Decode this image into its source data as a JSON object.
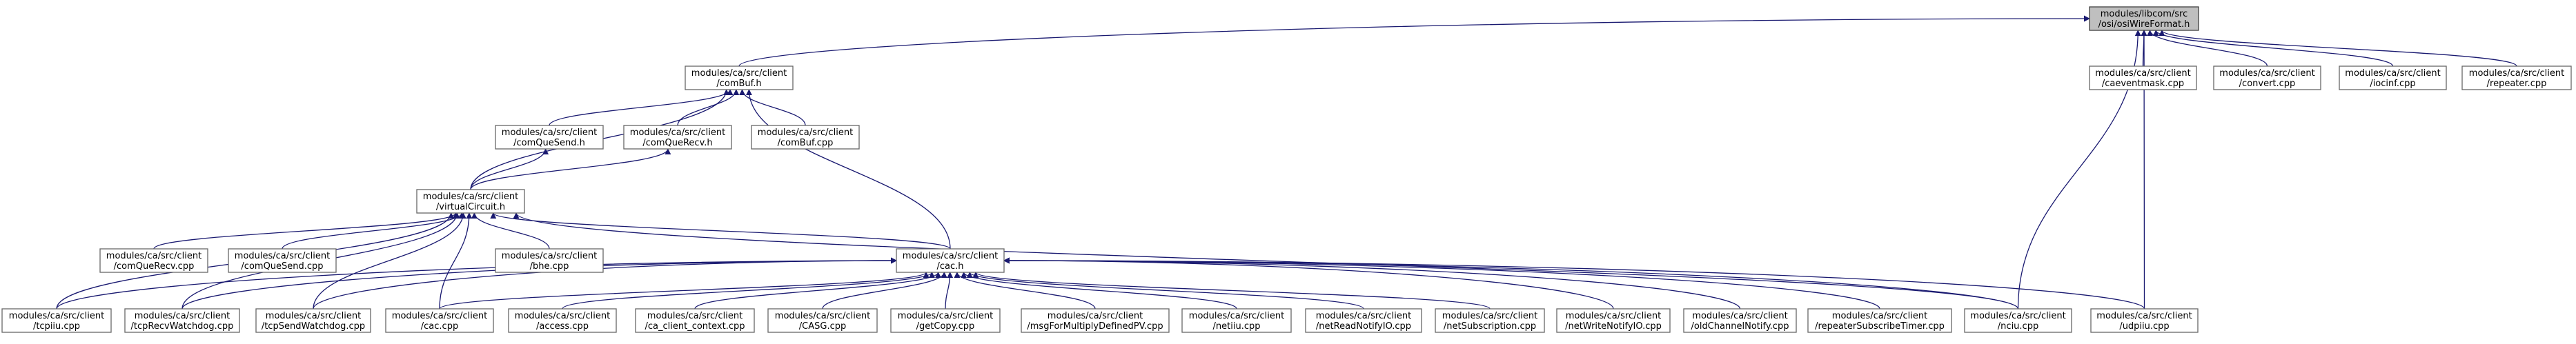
{
  "nodes": [
    {
      "id": "root",
      "line1": "modules/libcom/src",
      "line2": "/osi/osiWireFormat.h",
      "root": true
    },
    {
      "id": "comBuf_h",
      "line1": "modules/ca/src/client",
      "line2": "/comBuf.h"
    },
    {
      "id": "caeventmask",
      "line1": "modules/ca/src/client",
      "line2": "/caeventmask.cpp"
    },
    {
      "id": "convert",
      "line1": "modules/ca/src/client",
      "line2": "/convert.cpp"
    },
    {
      "id": "iocinf",
      "line1": "modules/ca/src/client",
      "line2": "/iocinf.cpp"
    },
    {
      "id": "repeater",
      "line1": "modules/ca/src/client",
      "line2": "/repeater.cpp"
    },
    {
      "id": "comQueSend_h",
      "line1": "modules/ca/src/client",
      "line2": "/comQueSend.h"
    },
    {
      "id": "comQueRecv_h",
      "line1": "modules/ca/src/client",
      "line2": "/comQueRecv.h"
    },
    {
      "id": "comBuf_cpp",
      "line1": "modules/ca/src/client",
      "line2": "/comBuf.cpp"
    },
    {
      "id": "virtualCircuit_h",
      "line1": "modules/ca/src/client",
      "line2": "/virtualCircuit.h"
    },
    {
      "id": "comQueRecv_cpp",
      "line1": "modules/ca/src/client",
      "line2": "/comQueRecv.cpp"
    },
    {
      "id": "comQueSend_cpp",
      "line1": "modules/ca/src/client",
      "line2": "/comQueSend.cpp"
    },
    {
      "id": "bhe_cpp",
      "line1": "modules/ca/src/client",
      "line2": "/bhe.cpp"
    },
    {
      "id": "cac_h",
      "line1": "modules/ca/src/client",
      "line2": "/cac.h"
    },
    {
      "id": "tcpiiu",
      "line1": "modules/ca/src/client",
      "line2": "/tcpiiu.cpp"
    },
    {
      "id": "tcpRecvWatchdog",
      "line1": "modules/ca/src/client",
      "line2": "/tcpRecvWatchdog.cpp"
    },
    {
      "id": "tcpSendWatchdog",
      "line1": "modules/ca/src/client",
      "line2": "/tcpSendWatchdog.cpp"
    },
    {
      "id": "cac_cpp",
      "line1": "modules/ca/src/client",
      "line2": "/cac.cpp"
    },
    {
      "id": "access",
      "line1": "modules/ca/src/client",
      "line2": "/access.cpp"
    },
    {
      "id": "ca_client_context",
      "line1": "modules/ca/src/client",
      "line2": "/ca_client_context.cpp"
    },
    {
      "id": "CASG",
      "line1": "modules/ca/src/client",
      "line2": "/CASG.cpp"
    },
    {
      "id": "getCopy",
      "line1": "modules/ca/src/client",
      "line2": "/getCopy.cpp"
    },
    {
      "id": "msgForMultiply",
      "line1": "modules/ca/src/client",
      "line2": "/msgForMultiplyDefinedPV.cpp"
    },
    {
      "id": "netiiu",
      "line1": "modules/ca/src/client",
      "line2": "/netiiu.cpp"
    },
    {
      "id": "netReadNotifyIO",
      "line1": "modules/ca/src/client",
      "line2": "/netReadNotifyIO.cpp"
    },
    {
      "id": "netSubscription",
      "line1": "modules/ca/src/client",
      "line2": "/netSubscription.cpp"
    },
    {
      "id": "netWriteNotifyIO",
      "line1": "modules/ca/src/client",
      "line2": "/netWriteNotifyIO.cpp"
    },
    {
      "id": "oldChannelNotify",
      "line1": "modules/ca/src/client",
      "line2": "/oldChannelNotify.cpp"
    },
    {
      "id": "repeaterSubscribeTimer",
      "line1": "modules/ca/src/client",
      "line2": "/repeaterSubscribeTimer.cpp"
    },
    {
      "id": "nciu",
      "line1": "modules/ca/src/client",
      "line2": "/nciu.cpp"
    },
    {
      "id": "udpiiu",
      "line1": "modules/ca/src/client",
      "line2": "/udpiiu.cpp"
    }
  ],
  "edges": [
    {
      "from": "comBuf_h",
      "to": "root"
    },
    {
      "from": "caeventmask",
      "to": "root"
    },
    {
      "from": "convert",
      "to": "root"
    },
    {
      "from": "iocinf",
      "to": "root"
    },
    {
      "from": "repeater",
      "to": "root"
    },
    {
      "from": "nciu",
      "to": "root"
    },
    {
      "from": "udpiiu",
      "to": "root"
    },
    {
      "from": "comQueSend_h",
      "to": "comBuf_h"
    },
    {
      "from": "comQueRecv_h",
      "to": "comBuf_h"
    },
    {
      "from": "comBuf_cpp",
      "to": "comBuf_h"
    },
    {
      "from": "virtualCircuit_h",
      "to": "comBuf_h"
    },
    {
      "from": "cac_h",
      "to": "comBuf_h"
    },
    {
      "from": "virtualCircuit_h",
      "to": "comQueSend_h"
    },
    {
      "from": "virtualCircuit_h",
      "to": "comQueRecv_h"
    },
    {
      "from": "comQueRecv_cpp",
      "to": "virtualCircuit_h"
    },
    {
      "from": "comQueSend_cpp",
      "to": "virtualCircuit_h"
    },
    {
      "from": "bhe_cpp",
      "to": "virtualCircuit_h"
    },
    {
      "from": "cac_h",
      "to": "virtualCircuit_h"
    },
    {
      "from": "tcpiiu",
      "to": "virtualCircuit_h"
    },
    {
      "from": "tcpRecvWatchdog",
      "to": "virtualCircuit_h"
    },
    {
      "from": "tcpSendWatchdog",
      "to": "virtualCircuit_h"
    },
    {
      "from": "cac_cpp",
      "to": "virtualCircuit_h"
    },
    {
      "from": "nciu",
      "to": "virtualCircuit_h"
    },
    {
      "from": "tcpiiu",
      "to": "cac_h"
    },
    {
      "from": "tcpRecvWatchdog",
      "to": "cac_h"
    },
    {
      "from": "tcpSendWatchdog",
      "to": "cac_h"
    },
    {
      "from": "cac_cpp",
      "to": "cac_h"
    },
    {
      "from": "access",
      "to": "cac_h"
    },
    {
      "from": "ca_client_context",
      "to": "cac_h"
    },
    {
      "from": "CASG",
      "to": "cac_h"
    },
    {
      "from": "getCopy",
      "to": "cac_h"
    },
    {
      "from": "msgForMultiply",
      "to": "cac_h"
    },
    {
      "from": "netiiu",
      "to": "cac_h"
    },
    {
      "from": "netReadNotifyIO",
      "to": "cac_h"
    },
    {
      "from": "netSubscription",
      "to": "cac_h"
    },
    {
      "from": "netWriteNotifyIO",
      "to": "cac_h"
    },
    {
      "from": "oldChannelNotify",
      "to": "cac_h"
    },
    {
      "from": "repeaterSubscribeTimer",
      "to": "cac_h"
    },
    {
      "from": "nciu",
      "to": "cac_h"
    },
    {
      "from": "udpiiu",
      "to": "cac_h"
    }
  ],
  "colors": {
    "edge": "#191970",
    "node_border": "#666666",
    "root_fill": "#bfbfbf",
    "node_fill": "#ffffff"
  }
}
